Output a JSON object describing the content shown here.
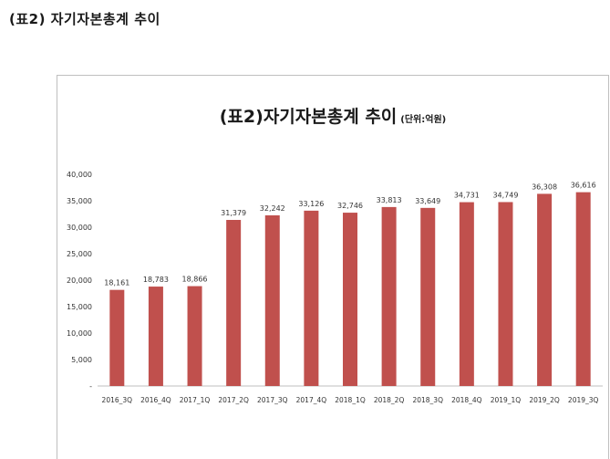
{
  "page": {
    "heading": "(표2) 자기자본총계 추이"
  },
  "chart_data": {
    "type": "bar",
    "title": "(표2)자기자본총계 추이",
    "unit_label": "(단위:억원)",
    "categories": [
      "2016_3Q",
      "2016_4Q",
      "2017_1Q",
      "2017_2Q",
      "2017_3Q",
      "2017_4Q",
      "2018_1Q",
      "2018_2Q",
      "2018_3Q",
      "2018_4Q",
      "2019_1Q",
      "2019_2Q",
      "2019_3Q"
    ],
    "values": [
      18161,
      18783,
      18866,
      31379,
      32242,
      33126,
      32746,
      33813,
      33649,
      34731,
      34749,
      36308,
      36616
    ],
    "value_labels": [
      "18,161",
      "18,783",
      "18,866",
      "31,379",
      "32,242",
      "33,126",
      "32,746",
      "33,813",
      "33,649",
      "34,731",
      "34,749",
      "36,308",
      "36,616"
    ],
    "y_ticks": [
      {
        "value": 0,
        "label": "-"
      },
      {
        "value": 5000,
        "label": "5,000"
      },
      {
        "value": 10000,
        "label": "10,000"
      },
      {
        "value": 15000,
        "label": "15,000"
      },
      {
        "value": 20000,
        "label": "20,000"
      },
      {
        "value": 25000,
        "label": "25,000"
      },
      {
        "value": 30000,
        "label": "30,000"
      },
      {
        "value": 35000,
        "label": "35,000"
      },
      {
        "value": 40000,
        "label": "40,000"
      }
    ],
    "ylim": [
      0,
      40000
    ],
    "grid": false,
    "bar_color": "#c0504d"
  }
}
